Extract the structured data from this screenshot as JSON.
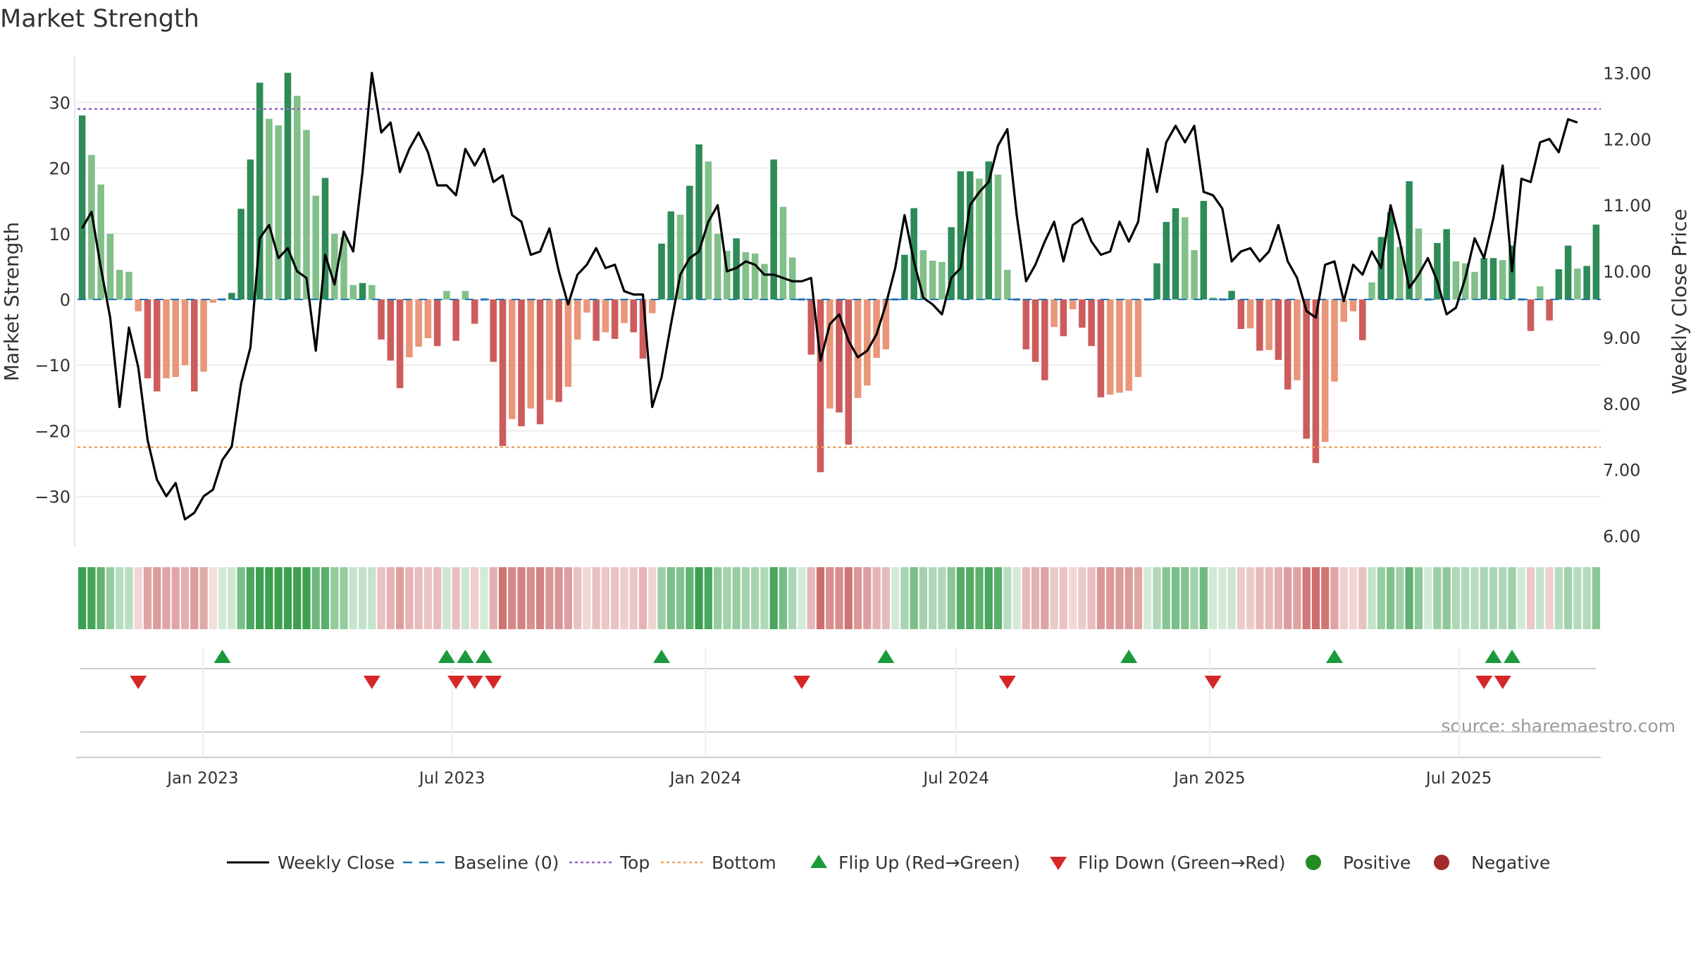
{
  "chart_data": {
    "type": "bar",
    "title": "Market Strength",
    "source": "source: sharemaestro.com",
    "left_axis": {
      "label": "Market Strength",
      "range": [
        -37,
        37
      ],
      "ticks": [
        30,
        20,
        10,
        0,
        -10,
        -20,
        -30
      ],
      "tick_labels": [
        "30",
        "20",
        "10",
        "0",
        "−10",
        "−20",
        "−30"
      ]
    },
    "right_axis": {
      "label": "Weekly Close Price",
      "range": [
        5.9,
        13.25
      ],
      "ticks": [
        6,
        7,
        8,
        9,
        10,
        11,
        12,
        13
      ],
      "tick_labels": [
        "6.00",
        "7.00",
        "8.00",
        "9.00",
        "10.00",
        "11.00",
        "12.00",
        "13.00"
      ]
    },
    "x_axis": {
      "start": "2022-10-02",
      "end": "2025-10-12",
      "ticks": [
        "2023-01-01",
        "2023-07-01",
        "2024-01-01",
        "2024-07-01",
        "2025-01-01",
        "2025-07-01"
      ],
      "tick_labels": [
        "Jan 2023",
        "Jul 2023",
        "Jan 2024",
        "Jul 2024",
        "Jan 2025",
        "Jul 2025"
      ]
    },
    "levels": {
      "top": 29,
      "bottom": -22.5,
      "baseline": 0
    },
    "strength": [
      28,
      22,
      17.5,
      10,
      4.5,
      4.2,
      -1.8,
      -12,
      -14,
      -12,
      -11.8,
      -10,
      -14,
      -11,
      -0.5,
      0,
      1,
      13.8,
      21.3,
      33,
      27.5,
      26.5,
      34.5,
      31,
      25.8,
      15.8,
      18.5,
      10,
      9.5,
      2.2,
      2.5,
      2.2,
      -6.1,
      -9.3,
      -13.5,
      -8.8,
      -7.2,
      -5.9,
      -7.1,
      1.3,
      -6.3,
      1.3,
      -3.7,
      0,
      -9.5,
      -22.3,
      -18.2,
      -19.3,
      -16.6,
      -19,
      -15.3,
      -15.6,
      -13.3,
      -6.1,
      -2,
      -6.3,
      -5,
      -6,
      -3.6,
      -5,
      -9,
      -2.1,
      8.5,
      13.4,
      12.9,
      17.3,
      23.6,
      21,
      10,
      7.4,
      9.3,
      7.2,
      7,
      5.4,
      21.3,
      14.1,
      6.4,
      0,
      -8.4,
      -26.3,
      -16.6,
      -17.2,
      -22.1,
      -15,
      -13.1,
      -8.9,
      -7.6,
      0,
      6.8,
      13.9,
      7.5,
      5.9,
      5.7,
      11,
      19.5,
      19.5,
      18.4,
      21,
      19,
      4.5,
      0,
      -7.6,
      -9.5,
      -12.3,
      -4.2,
      -5.6,
      -1.5,
      -4.3,
      -7.1,
      -14.9,
      -14.5,
      -14.2,
      -13.9,
      -11.8,
      0,
      5.5,
      11.8,
      13.9,
      12.5,
      7.5,
      15,
      0.3,
      0,
      1.3,
      -4.5,
      -4.4,
      -7.8,
      -7.7,
      -9.2,
      -13.7,
      -12.3,
      -21.2,
      -24.9,
      -21.7,
      -12.5,
      -3.4,
      -1.8,
      -6.2,
      2.6,
      9.5,
      13.3,
      8,
      18,
      10.8,
      0,
      8.6,
      10.7,
      5.8,
      5.5,
      4.2,
      6.3,
      6.3,
      6,
      8.2,
      0,
      -4.8,
      2,
      -3.2,
      4.6,
      8.2,
      4.7,
      5.1,
      11.4
    ],
    "price": [
      10.65,
      10.9,
      10.05,
      9.3,
      7.95,
      9.15,
      8.55,
      7.45,
      6.85,
      6.6,
      6.8,
      6.25,
      6.35,
      6.6,
      6.7,
      7.15,
      7.35,
      8.3,
      8.85,
      10.5,
      10.7,
      10.2,
      10.35,
      10.0,
      9.9,
      8.8,
      10.25,
      9.8,
      10.6,
      10.3,
      11.5,
      13.0,
      12.1,
      12.25,
      11.5,
      11.85,
      12.1,
      11.8,
      11.3,
      11.3,
      11.15,
      11.85,
      11.6,
      11.85,
      11.35,
      11.45,
      10.85,
      10.75,
      10.25,
      10.3,
      10.65,
      10.0,
      9.5,
      9.95,
      10.1,
      10.35,
      10.05,
      10.1,
      9.7,
      9.65,
      9.65,
      7.95,
      8.4,
      9.2,
      9.95,
      10.2,
      10.3,
      10.75,
      11.0,
      10.0,
      10.05,
      10.15,
      10.1,
      9.95,
      9.95,
      9.9,
      9.85,
      9.85,
      9.9,
      8.65,
      9.2,
      9.35,
      8.95,
      8.7,
      8.8,
      9.05,
      9.5,
      10.05,
      10.85,
      10.15,
      9.6,
      9.5,
      9.35,
      9.9,
      10.05,
      11.0,
      11.2,
      11.35,
      11.9,
      12.15,
      10.85,
      9.85,
      10.1,
      10.45,
      10.75,
      10.15,
      10.7,
      10.8,
      10.45,
      10.25,
      10.3,
      10.75,
      10.45,
      10.75,
      11.85,
      11.2,
      11.95,
      12.2,
      11.95,
      12.2,
      11.2,
      11.15,
      10.95,
      10.15,
      10.3,
      10.35,
      10.15,
      10.3,
      10.7,
      10.15,
      9.9,
      9.4,
      9.3,
      10.1,
      10.15,
      9.55,
      10.1,
      9.95,
      10.3,
      10.05,
      11.0,
      10.45,
      9.75,
      9.95,
      10.2,
      9.85,
      9.35,
      9.45,
      9.9,
      10.5,
      10.2,
      10.8,
      11.6,
      10.0,
      11.4,
      11.35,
      11.95,
      12.0,
      11.8,
      12.3,
      12.25
    ],
    "flip_up_weeks": [
      15,
      39,
      41,
      43,
      62,
      86,
      112,
      134,
      151,
      153
    ],
    "flip_down_weeks": [
      6,
      31,
      40,
      42,
      44,
      77,
      99,
      121,
      150,
      152
    ],
    "legend": {
      "items": [
        "Weekly Close",
        "Baseline (0)",
        "Top",
        "Bottom",
        "Flip Up (Red→Green)",
        "Flip Down (Green→Red)",
        "Positive",
        "Negative"
      ],
      "placement": "bottom-center"
    },
    "colors": {
      "pos_strong": "#2e8b57",
      "pos_light": "#82c08a",
      "neg_strong": "#cd5c5c",
      "neg_light": "#e9967a",
      "price_line": "#000000",
      "baseline": "#1f77b4",
      "top": "#9467bd",
      "bottom": "#f4a460",
      "flip_up": "#1a9a3c",
      "flip_down": "#d62728",
      "positive_dot": "#228b22",
      "negative_dot": "#a52a2a"
    }
  }
}
